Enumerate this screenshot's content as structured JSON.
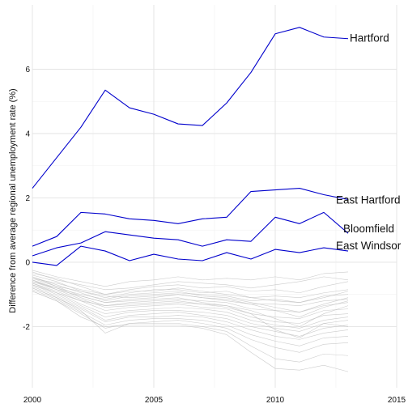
{
  "chart_data": {
    "type": "line",
    "ylabel": "Difference from average regional unemployment rate (%)",
    "xlabel": "",
    "xlim": [
      2000,
      2015
    ],
    "ylim": [
      -3.9,
      8.0
    ],
    "x_ticks": [
      2000,
      2005,
      2010,
      2015
    ],
    "y_ticks": [
      -2,
      0,
      2,
      4,
      6
    ],
    "grid": true,
    "highlight_color": "#0000cc",
    "background_color": "#bbbbbb",
    "x": [
      2000,
      2001,
      2002,
      2003,
      2004,
      2005,
      2006,
      2007,
      2008,
      2009,
      2010,
      2011,
      2012,
      2013
    ],
    "series": [
      {
        "name": "Hartford",
        "highlight": true,
        "values": [
          2.3,
          3.25,
          4.2,
          5.35,
          4.8,
          4.6,
          4.3,
          4.25,
          4.95,
          5.9,
          7.1,
          7.3,
          7.0,
          6.95
        ]
      },
      {
        "name": "East Hartford",
        "highlight": true,
        "values": [
          0.5,
          0.8,
          1.55,
          1.5,
          1.35,
          1.3,
          1.2,
          1.35,
          1.4,
          2.2,
          2.25,
          2.3,
          2.1,
          1.95
        ]
      },
      {
        "name": "Bloomfield",
        "highlight": true,
        "values": [
          0.2,
          0.45,
          0.6,
          0.95,
          0.85,
          0.75,
          0.7,
          0.5,
          0.7,
          0.65,
          1.4,
          1.2,
          1.55,
          0.9
        ]
      },
      {
        "name": "East Windsor",
        "highlight": true,
        "values": [
          0.0,
          -0.1,
          0.5,
          0.35,
          0.05,
          0.25,
          0.1,
          0.05,
          0.3,
          0.1,
          0.4,
          0.3,
          0.45,
          0.35
        ]
      },
      {
        "values": [
          -0.25,
          -0.45,
          -0.6,
          -0.75,
          -0.6,
          -0.55,
          -0.45,
          -0.55,
          -0.5,
          -0.55,
          -0.45,
          -0.55,
          -0.35,
          -0.3
        ]
      },
      {
        "values": [
          -0.3,
          -0.55,
          -0.7,
          -0.85,
          -0.8,
          -0.7,
          -0.6,
          -0.65,
          -0.7,
          -0.8,
          -0.7,
          -0.6,
          -0.45,
          -0.55
        ]
      },
      {
        "values": [
          -0.35,
          -0.5,
          -0.75,
          -1.0,
          -0.85,
          -0.75,
          -0.7,
          -0.8,
          -0.75,
          -0.9,
          -0.85,
          -0.95,
          -0.75,
          -0.6
        ]
      },
      {
        "values": [
          -0.4,
          -0.6,
          -0.9,
          -1.1,
          -0.95,
          -0.85,
          -0.85,
          -0.95,
          -0.9,
          -1.1,
          -1.05,
          -1.1,
          -0.95,
          -0.85
        ]
      },
      {
        "values": [
          -0.45,
          -0.7,
          -0.95,
          -1.2,
          -1.05,
          -1.0,
          -0.95,
          -1.0,
          -1.05,
          -1.2,
          -1.15,
          -1.25,
          -1.05,
          -1.0
        ]
      },
      {
        "values": [
          -0.5,
          -0.75,
          -1.05,
          -1.25,
          -1.15,
          -1.1,
          -1.0,
          -1.1,
          -1.15,
          -1.3,
          -1.3,
          -1.35,
          -1.2,
          -1.15
        ]
      },
      {
        "values": [
          -0.55,
          -0.8,
          -1.1,
          -1.35,
          -1.25,
          -1.2,
          -1.15,
          -1.2,
          -1.25,
          -1.45,
          -1.5,
          -1.55,
          -1.35,
          -1.25
        ]
      },
      {
        "values": [
          -0.6,
          -0.85,
          -1.15,
          -1.4,
          -1.35,
          -1.3,
          -1.25,
          -1.3,
          -1.35,
          -1.6,
          -1.7,
          -1.75,
          -1.5,
          -1.45
        ]
      },
      {
        "values": [
          -0.65,
          -0.9,
          -1.2,
          -1.5,
          -1.4,
          -1.35,
          -1.3,
          -1.4,
          -1.45,
          -1.7,
          -1.85,
          -1.9,
          -1.65,
          -1.6
        ]
      },
      {
        "values": [
          -0.7,
          -0.95,
          -1.3,
          -1.6,
          -1.5,
          -1.45,
          -1.4,
          -1.45,
          -1.55,
          -1.8,
          -1.95,
          -2.05,
          -1.8,
          -1.7
        ]
      },
      {
        "values": [
          -0.7,
          -1.0,
          -1.35,
          -1.7,
          -1.55,
          -1.5,
          -1.5,
          -1.55,
          -1.65,
          -1.9,
          -2.05,
          -2.15,
          -1.9,
          -1.8
        ]
      },
      {
        "values": [
          -0.75,
          -1.05,
          -1.4,
          -1.8,
          -1.65,
          -1.6,
          -1.55,
          -1.65,
          -1.75,
          -2.0,
          -2.15,
          -2.3,
          -2.05,
          -1.95
        ]
      },
      {
        "values": [
          -0.8,
          -1.1,
          -1.45,
          -1.85,
          -1.7,
          -1.7,
          -1.65,
          -1.7,
          -1.85,
          -2.1,
          -2.3,
          -2.4,
          -2.2,
          -2.1
        ]
      },
      {
        "values": [
          -0.85,
          -1.15,
          -1.55,
          -1.95,
          -1.8,
          -1.75,
          -1.75,
          -1.8,
          -1.95,
          -2.25,
          -2.45,
          -2.6,
          -2.35,
          -2.3
        ]
      },
      {
        "values": [
          -0.9,
          -1.2,
          -1.6,
          -2.05,
          -1.9,
          -1.85,
          -1.8,
          -1.9,
          -2.05,
          -2.4,
          -2.65,
          -2.8,
          -2.55,
          -2.5
        ]
      },
      {
        "values": [
          -0.65,
          -0.95,
          -1.2,
          -1.35,
          -1.3,
          -1.25,
          -1.2,
          -1.3,
          -1.4,
          -1.6,
          -2.1,
          -2.35,
          -1.9,
          -2.0
        ]
      },
      {
        "values": [
          -0.55,
          -0.85,
          -1.05,
          -1.25,
          -1.2,
          -1.15,
          -1.1,
          -1.25,
          -1.35,
          -1.5,
          -1.75,
          -2.0,
          -1.6,
          -1.35
        ]
      },
      {
        "values": [
          -0.45,
          -0.75,
          -0.9,
          -1.05,
          -1.1,
          -1.05,
          -1.0,
          -1.1,
          -1.2,
          -1.3,
          -1.5,
          -1.7,
          -1.4,
          -1.2
        ]
      },
      {
        "values": [
          -0.8,
          -1.1,
          -1.5,
          -2.2,
          -1.9,
          -1.9,
          -1.9,
          -2.0,
          -2.15,
          -2.6,
          -3.0,
          -3.1,
          -2.85,
          -2.9
        ]
      },
      {
        "values": [
          -0.9,
          -1.2,
          -1.7,
          -2.0,
          -1.95,
          -1.95,
          -1.95,
          -2.05,
          -2.25,
          -2.8,
          -3.3,
          -3.35,
          -3.2,
          -3.4
        ]
      },
      {
        "values": [
          -0.6,
          -0.8,
          -1.0,
          -1.15,
          -1.0,
          -0.95,
          -0.9,
          -1.05,
          -1.1,
          -1.25,
          -1.4,
          -1.55,
          -1.3,
          -1.1
        ]
      },
      {
        "values": [
          -0.5,
          -0.65,
          -0.85,
          -1.0,
          -0.9,
          -0.9,
          -0.8,
          -0.9,
          -1.0,
          -1.1,
          -1.2,
          -1.25,
          -1.1,
          -0.9
        ]
      }
    ]
  }
}
